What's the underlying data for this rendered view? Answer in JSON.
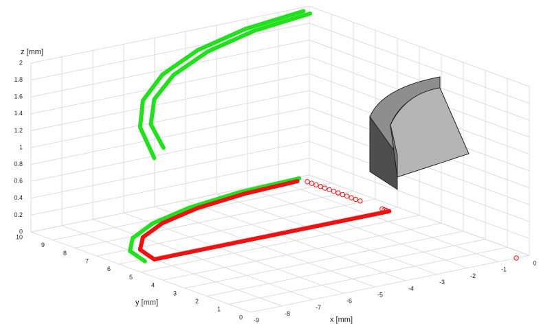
{
  "chart_data": {
    "type": "line3d",
    "x_label": "x [mm]",
    "y_label": "y [mm]",
    "z_label": "z [mm]",
    "xlim": [
      -9,
      0
    ],
    "ylim": [
      0,
      10
    ],
    "zlim": [
      0,
      2
    ],
    "xticks": [
      -9,
      -8,
      -7,
      -6,
      -5,
      -4,
      -3,
      -2,
      -1,
      0
    ],
    "yticks": [
      0,
      1,
      2,
      3,
      4,
      5,
      6,
      7,
      8,
      9,
      10
    ],
    "zticks": [
      0,
      0.2,
      0.4,
      0.6,
      0.8,
      1,
      1.2,
      1.4,
      1.6,
      1.8,
      2
    ],
    "grid": true,
    "series": [
      {
        "color": "#22e01e",
        "style": "line",
        "x": [
          -8,
          -7.74,
          -6.98,
          -5.77,
          -4.2,
          -2.37,
          -0.4
        ],
        "y": [
          5.8,
          6.81,
          7.75,
          8.56,
          9.18,
          9.57,
          9.7
        ],
        "z": [
          1.2,
          1.45,
          1.62,
          1.76,
          1.87,
          1.95,
          2.0
        ]
      },
      {
        "color": "#22e01e",
        "style": "line",
        "x": [
          -7.7,
          -7.45,
          -6.72,
          -5.56,
          -4.05,
          -2.29,
          -0.4
        ],
        "y": [
          5.8,
          6.73,
          7.6,
          8.35,
          8.92,
          9.28,
          9.4
        ],
        "z": [
          1.3,
          1.47,
          1.63,
          1.76,
          1.87,
          1.95,
          2.0
        ]
      },
      {
        "color": "#22e01e",
        "style": "line",
        "x": [
          -8.3,
          -8.03,
          -7.24,
          -5.99,
          -4.35,
          -2.44,
          -0.4
        ],
        "y": [
          5.8,
          6.86,
          7.85,
          8.7,
          9.35,
          9.76,
          9.9
        ],
        "z": [
          0,
          0,
          0,
          0,
          0,
          0,
          0
        ]
      },
      {
        "color": "#ee1111",
        "style": "line",
        "x": [
          -8,
          -7.74,
          -6.98,
          -5.77,
          -4.2,
          -2.37,
          -0.6
        ],
        "y": [
          5.8,
          6.81,
          7.75,
          8.56,
          9.18,
          9.57,
          9.7
        ],
        "z": [
          0,
          0,
          0,
          0,
          0,
          0,
          0
        ]
      },
      {
        "color": "#ee1111",
        "style": "line",
        "x": [
          -8,
          -0.4
        ],
        "y": [
          5.8,
          5.8
        ],
        "z": [
          0,
          0
        ]
      },
      {
        "color": "#ee1111",
        "style": "marker",
        "x": [
          -0.42,
          -0.42,
          -0.42,
          -0.42,
          -0.42,
          -0.42,
          -0.42,
          -0.42,
          -0.42,
          -0.42,
          -0.42,
          -0.42,
          -0.42,
          -0.42,
          -0.42,
          -0.42,
          -0.42
        ],
        "y": [
          9.5,
          9.3,
          9.1,
          8.9,
          8.7,
          8.5,
          8.3,
          8.1,
          7.9,
          7.7,
          7.5,
          7.3,
          7.1,
          6.1,
          6.0,
          5.9,
          0
        ],
        "z": [
          0,
          0,
          0,
          0,
          0,
          0,
          0,
          0,
          0,
          0,
          0,
          0,
          0,
          0,
          0,
          0,
          0
        ]
      }
    ]
  }
}
